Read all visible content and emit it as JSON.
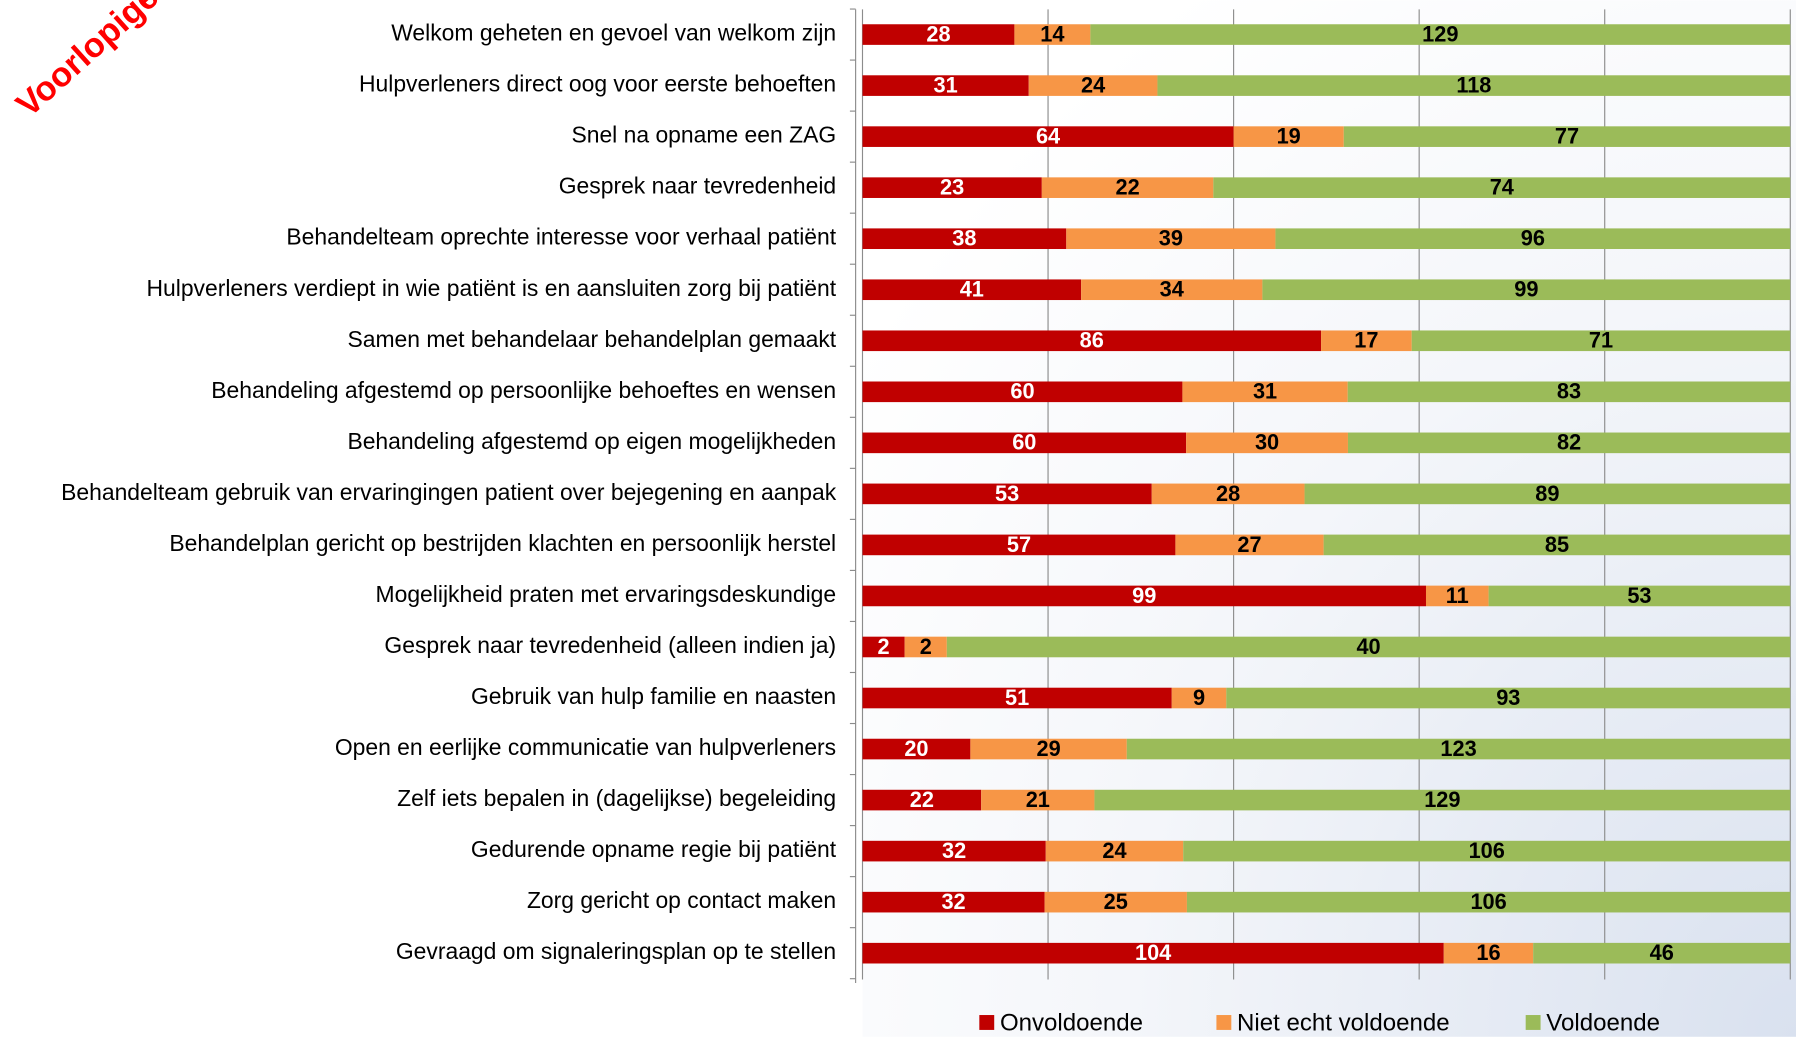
{
  "chart_data": {
    "type": "bar",
    "orientation": "horizontal",
    "stacking": "percent",
    "watermark": "Voorlopige Re",
    "categories": [
      "Welkom geheten en gevoel van welkom zijn",
      "Hulpverleners direct oog voor eerste behoeften",
      "Snel na opname een ZAG",
      "Gesprek naar tevredenheid",
      "Behandelteam oprechte interesse voor verhaal patiënt",
      "Hulpverleners verdiept in wie patiënt is en aansluiten zorg bij patiënt",
      "Samen met behandelaar behandelplan gemaakt",
      "Behandeling afgestemd op persoonlijke behoeftes en wensen",
      "Behandeling afgestemd op eigen mogelijkheden",
      "Behandelteam gebruik van ervaringingen patient over bejegening en aanpak",
      "Behandelplan gericht op bestrijden klachten en persoonlijk herstel",
      "Mogelijkheid praten met ervaringsdeskundige",
      "Gesprek naar tevredenheid (alleen indien ja)",
      "Gebruik van hulp familie en naasten",
      "Open en eerlijke communicatie van hulpverleners",
      "Zelf iets bepalen in (dagelijkse) begeleiding",
      "Gedurende opname regie bij patiënt",
      "Zorg gericht op contact maken",
      "Gevraagd om signaleringsplan op te stellen"
    ],
    "series": [
      {
        "name": "Onvoldoende",
        "color": "#c00000",
        "label_color": "#ffffff",
        "values": [
          28,
          31,
          64,
          23,
          38,
          41,
          86,
          60,
          60,
          53,
          57,
          99,
          2,
          51,
          20,
          22,
          32,
          32,
          104
        ]
      },
      {
        "name": "Niet echt voldoende",
        "color": "#f79646",
        "label_color": "#000000",
        "values": [
          14,
          24,
          19,
          22,
          39,
          34,
          17,
          31,
          30,
          28,
          27,
          11,
          2,
          9,
          29,
          21,
          24,
          25,
          16
        ]
      },
      {
        "name": "Voldoende",
        "color": "#9bbb59",
        "label_color": "#000000",
        "values": [
          129,
          118,
          77,
          74,
          96,
          99,
          71,
          83,
          82,
          89,
          85,
          53,
          40,
          93,
          123,
          129,
          106,
          106,
          46
        ]
      }
    ],
    "xlim": [
      0,
      100
    ],
    "xticks": [
      0,
      20,
      40,
      60,
      80,
      100
    ],
    "grid": true,
    "legend": "bottom"
  }
}
